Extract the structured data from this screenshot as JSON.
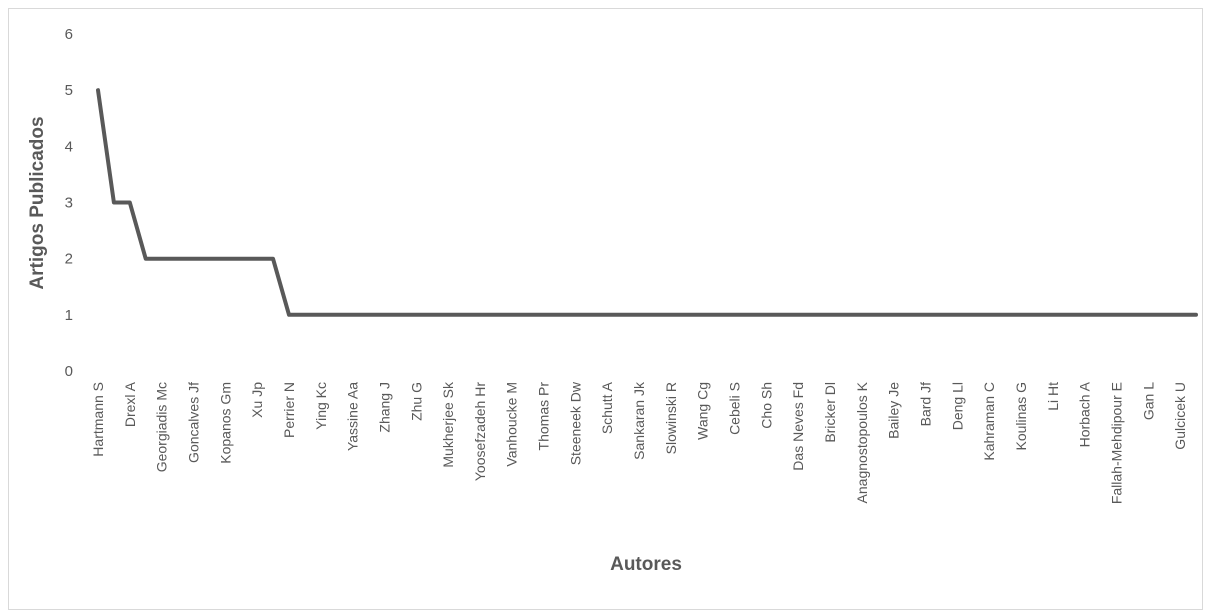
{
  "chart_data": {
    "type": "line",
    "title": "",
    "xlabel": "Autores",
    "ylabel": "Artigos Publicados",
    "ylim": [
      0,
      6
    ],
    "yticks": [
      "0",
      "1",
      "2",
      "3",
      "4",
      "5",
      "6"
    ],
    "grid": false,
    "legend": "none",
    "line_color": "#595959",
    "categories": [
      "Hartmann S",
      "",
      "Drexl A",
      "",
      "Georgiadis Mc",
      "",
      "Goncalves Jf",
      "",
      "Kopanos Gm",
      "",
      "Xu Jp",
      "",
      "Perrier N",
      "",
      "Ying Kc",
      "",
      "Yassine Aa",
      "",
      "Zhang J",
      "",
      "Zhu G",
      "",
      "Mukherjee Sk",
      "",
      "Yoosefzadeh Hr",
      "",
      "Vanhoucke M",
      "",
      "Thomas Pr",
      "",
      "Steeneek Dw",
      "",
      "Schutt A",
      "",
      "Sankaran Jk",
      "",
      "Slowinski R",
      "",
      "Wang Cg",
      "",
      "Cebeli S",
      "",
      "Cho Sh",
      "",
      "Das Neves Fd",
      "",
      "Bricker Dl",
      "",
      "Anagnostopoulos K",
      "",
      "Bailey Je",
      "",
      "Bard Jf",
      "",
      "Deng Ll",
      "",
      "Kahraman C",
      "",
      "Koulinas G",
      "",
      "Li Ht",
      "",
      "Horbach A",
      "",
      "Fallah-Mehdipour E",
      "",
      "Gan L",
      "",
      "Gulcicek U",
      ""
    ],
    "values": [
      5,
      3,
      3,
      2,
      2,
      2,
      2,
      2,
      2,
      2,
      2,
      2,
      1,
      1,
      1,
      1,
      1,
      1,
      1,
      1,
      1,
      1,
      1,
      1,
      1,
      1,
      1,
      1,
      1,
      1,
      1,
      1,
      1,
      1,
      1,
      1,
      1,
      1,
      1,
      1,
      1,
      1,
      1,
      1,
      1,
      1,
      1,
      1,
      1,
      1,
      1,
      1,
      1,
      1,
      1,
      1,
      1,
      1,
      1,
      1,
      1,
      1,
      1,
      1,
      1,
      1,
      1,
      1,
      1,
      1
    ]
  }
}
